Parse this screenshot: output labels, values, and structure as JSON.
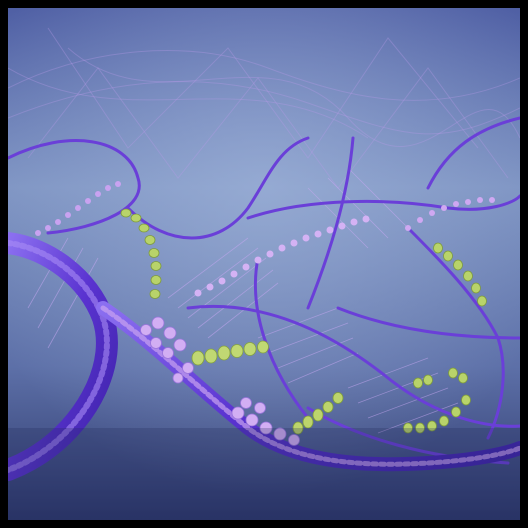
{
  "image": {
    "subject": "abstract-molecular-helix-network",
    "colors": {
      "border": "#000000",
      "background_top": "#6f84b4",
      "background_bottom": "#2e3a6e",
      "strand_violet": "#6a3fd8",
      "strand_deep": "#4b2bbf",
      "bead_lilac": "#c9a2f0",
      "bead_green": "#b8d36a",
      "mesh": "#b89be8"
    }
  }
}
